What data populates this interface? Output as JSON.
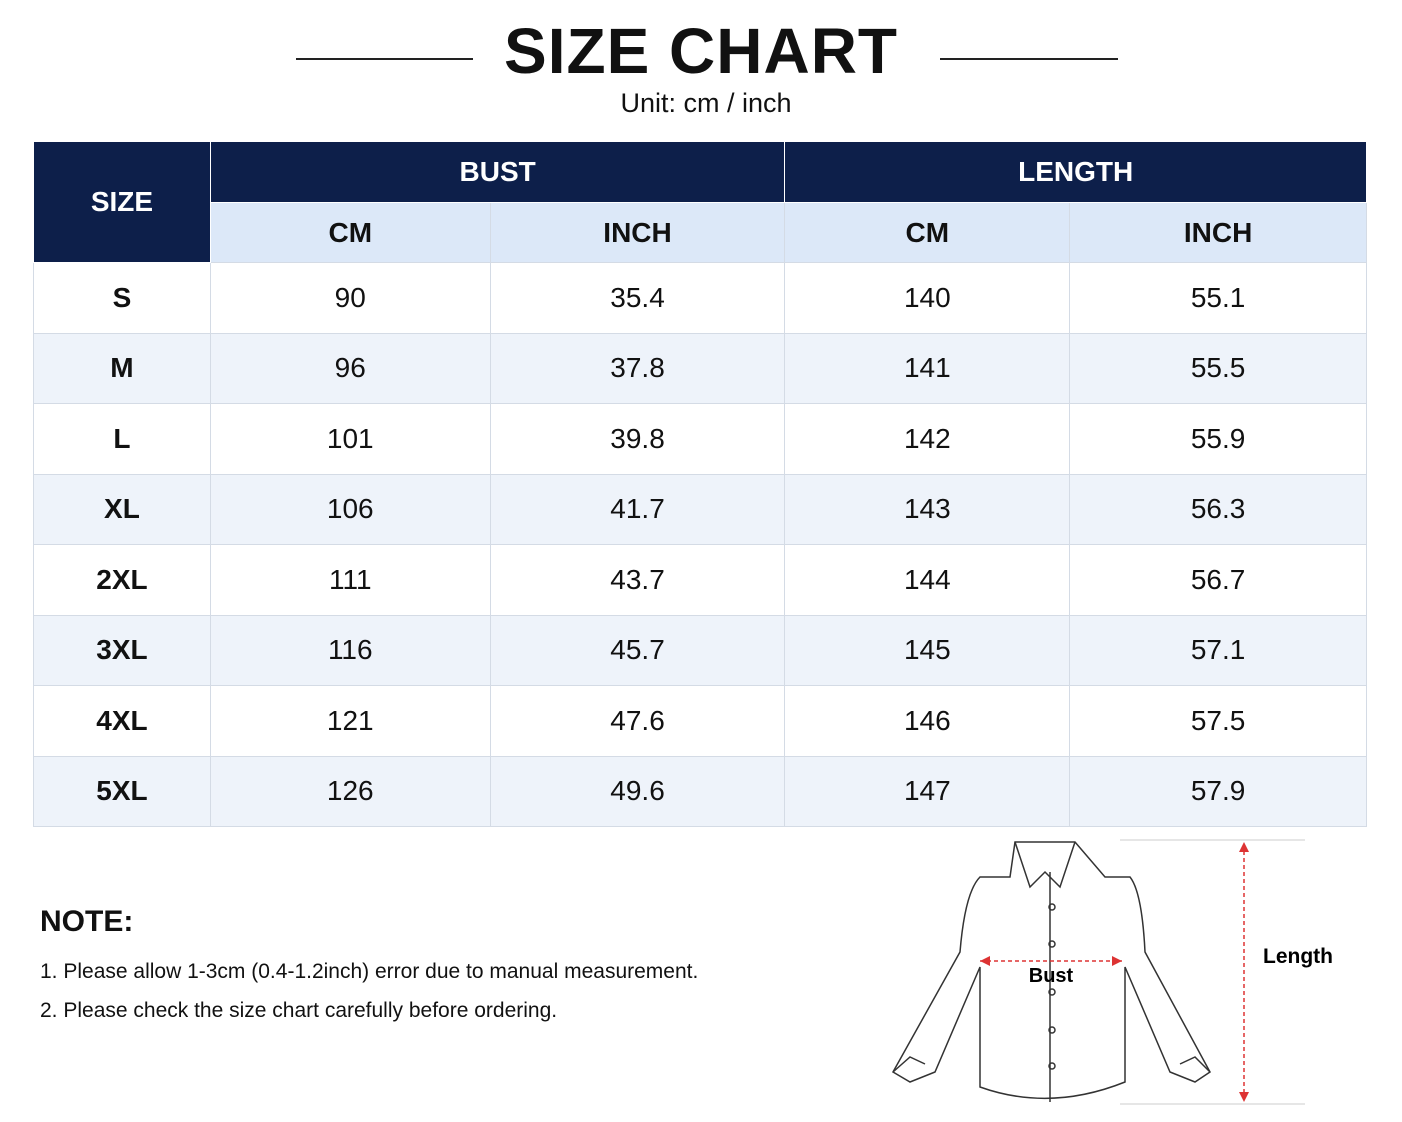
{
  "header": {
    "title": "SIZE CHART",
    "subtitle": "Unit: cm / inch"
  },
  "table": {
    "size_header": "SIZE",
    "groups": [
      "BUST",
      "LENGTH"
    ],
    "subheaders": [
      "CM",
      "INCH",
      "CM",
      "INCH"
    ],
    "rows": [
      [
        "S",
        "90",
        "35.4",
        "140",
        "55.1"
      ],
      [
        "M",
        "96",
        "37.8",
        "141",
        "55.5"
      ],
      [
        "L",
        "101",
        "39.8",
        "142",
        "55.9"
      ],
      [
        "XL",
        "106",
        "41.7",
        "143",
        "56.3"
      ],
      [
        "2XL",
        "111",
        "43.7",
        "144",
        "56.7"
      ],
      [
        "3XL",
        "116",
        "45.7",
        "145",
        "57.1"
      ],
      [
        "4XL",
        "121",
        "47.6",
        "146",
        "57.5"
      ],
      [
        "5XL",
        "126",
        "49.6",
        "147",
        "57.9"
      ]
    ]
  },
  "note": {
    "title": "NOTE:",
    "items": [
      "1. Please allow 1-3cm (0.4-1.2inch) error due to manual measurement.",
      "2. Please check the size chart carefully before ordering."
    ]
  },
  "diagram": {
    "bust": "Bust",
    "length": "Length"
  }
}
